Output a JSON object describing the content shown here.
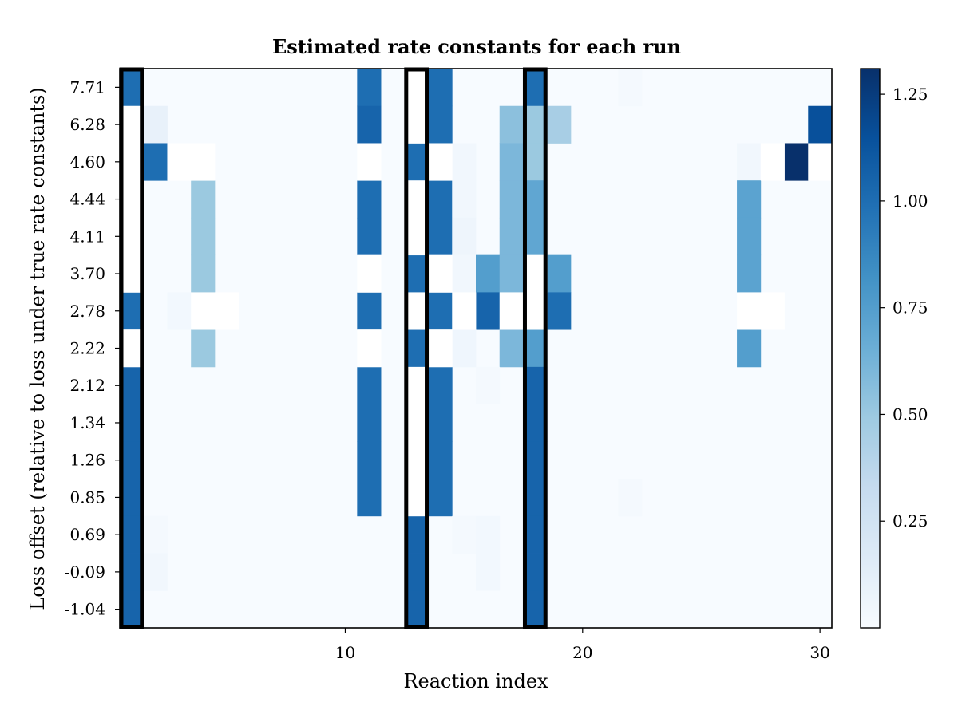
{
  "chart_data": {
    "type": "heatmap",
    "title": "Estimated rate constants for each run",
    "xlabel": "Reaction index",
    "ylabel": "Loss offset (relative to loss under true rate constants)",
    "x_range": [
      1,
      30
    ],
    "x_ticks": [
      10,
      20,
      30
    ],
    "row_labels": [
      "7.71",
      "6.28",
      "4.60",
      "4.44",
      "4.11",
      "3.70",
      "2.78",
      "2.22",
      "2.12",
      "1.34",
      "1.26",
      "0.85",
      "0.69",
      "-0.09",
      "-1.04"
    ],
    "colorbar": {
      "min": 0.0,
      "max": 1.31,
      "ticks": [
        0.25,
        0.5,
        0.75,
        1.0,
        1.25
      ],
      "tick_labels": [
        "0.25",
        "0.50",
        "0.75",
        "1.00",
        "1.25"
      ],
      "colormap": "Blues"
    },
    "highlighted_columns": [
      1,
      13,
      18
    ],
    "default_value": 0.0,
    "cells": [
      {
        "row": 0,
        "col": 1,
        "value": 1.0
      },
      {
        "row": 0,
        "col": 11,
        "value": 1.0
      },
      {
        "row": 0,
        "col": 14,
        "value": 1.0
      },
      {
        "row": 0,
        "col": 18,
        "value": 1.0
      },
      {
        "row": 0,
        "col": 22,
        "value": 0.02
      },
      {
        "row": 1,
        "col": 2,
        "value": 0.1
      },
      {
        "row": 1,
        "col": 11,
        "value": 1.05
      },
      {
        "row": 1,
        "col": 14,
        "value": 1.0
      },
      {
        "row": 1,
        "col": 17,
        "value": 0.55
      },
      {
        "row": 1,
        "col": 18,
        "value": 0.5
      },
      {
        "row": 1,
        "col": 19,
        "value": 0.45
      },
      {
        "row": 1,
        "col": 30,
        "value": 1.15
      },
      {
        "row": 2,
        "col": 2,
        "value": 1.0
      },
      {
        "row": 2,
        "col": 13,
        "value": 1.0
      },
      {
        "row": 2,
        "col": 15,
        "value": 0.04
      },
      {
        "row": 2,
        "col": 17,
        "value": 0.6
      },
      {
        "row": 2,
        "col": 18,
        "value": 0.5
      },
      {
        "row": 2,
        "col": 27,
        "value": 0.04
      },
      {
        "row": 2,
        "col": 29,
        "value": 1.31
      },
      {
        "row": 3,
        "col": 4,
        "value": 0.5
      },
      {
        "row": 3,
        "col": 11,
        "value": 1.0
      },
      {
        "row": 3,
        "col": 14,
        "value": 1.0
      },
      {
        "row": 3,
        "col": 15,
        "value": 0.04
      },
      {
        "row": 3,
        "col": 17,
        "value": 0.6
      },
      {
        "row": 3,
        "col": 18,
        "value": 0.7
      },
      {
        "row": 3,
        "col": 27,
        "value": 0.72
      },
      {
        "row": 4,
        "col": 4,
        "value": 0.5
      },
      {
        "row": 4,
        "col": 11,
        "value": 1.0
      },
      {
        "row": 4,
        "col": 14,
        "value": 1.0
      },
      {
        "row": 4,
        "col": 15,
        "value": 0.06
      },
      {
        "row": 4,
        "col": 17,
        "value": 0.6
      },
      {
        "row": 4,
        "col": 18,
        "value": 0.7
      },
      {
        "row": 4,
        "col": 27,
        "value": 0.72
      },
      {
        "row": 5,
        "col": 4,
        "value": 0.5
      },
      {
        "row": 5,
        "col": 13,
        "value": 1.0
      },
      {
        "row": 5,
        "col": 15,
        "value": 0.04
      },
      {
        "row": 5,
        "col": 16,
        "value": 0.75
      },
      {
        "row": 5,
        "col": 17,
        "value": 0.6
      },
      {
        "row": 5,
        "col": 19,
        "value": 0.75
      },
      {
        "row": 5,
        "col": 27,
        "value": 0.72
      },
      {
        "row": 6,
        "col": 1,
        "value": 1.0
      },
      {
        "row": 6,
        "col": 3,
        "value": 0.03
      },
      {
        "row": 6,
        "col": 11,
        "value": 1.0
      },
      {
        "row": 6,
        "col": 14,
        "value": 1.0
      },
      {
        "row": 6,
        "col": 16,
        "value": 1.05
      },
      {
        "row": 6,
        "col": 19,
        "value": 1.0
      },
      {
        "row": 7,
        "col": 4,
        "value": 0.5
      },
      {
        "row": 7,
        "col": 13,
        "value": 1.0
      },
      {
        "row": 7,
        "col": 15,
        "value": 0.05
      },
      {
        "row": 7,
        "col": 17,
        "value": 0.6
      },
      {
        "row": 7,
        "col": 18,
        "value": 0.75
      },
      {
        "row": 7,
        "col": 27,
        "value": 0.75
      },
      {
        "row": 8,
        "col": 1,
        "value": 1.05
      },
      {
        "row": 8,
        "col": 11,
        "value": 1.0
      },
      {
        "row": 8,
        "col": 14,
        "value": 1.0
      },
      {
        "row": 8,
        "col": 16,
        "value": 0.02
      },
      {
        "row": 8,
        "col": 18,
        "value": 1.05
      },
      {
        "row": 9,
        "col": 1,
        "value": 1.05
      },
      {
        "row": 9,
        "col": 11,
        "value": 1.0
      },
      {
        "row": 9,
        "col": 14,
        "value": 1.0
      },
      {
        "row": 9,
        "col": 18,
        "value": 1.05
      },
      {
        "row": 10,
        "col": 1,
        "value": 1.05
      },
      {
        "row": 10,
        "col": 11,
        "value": 1.0
      },
      {
        "row": 10,
        "col": 14,
        "value": 1.0
      },
      {
        "row": 10,
        "col": 18,
        "value": 1.05
      },
      {
        "row": 11,
        "col": 1,
        "value": 1.05
      },
      {
        "row": 11,
        "col": 11,
        "value": 1.0
      },
      {
        "row": 11,
        "col": 14,
        "value": 1.0
      },
      {
        "row": 11,
        "col": 18,
        "value": 1.05
      },
      {
        "row": 11,
        "col": 22,
        "value": 0.02
      },
      {
        "row": 12,
        "col": 1,
        "value": 1.05
      },
      {
        "row": 12,
        "col": 2,
        "value": 0.02
      },
      {
        "row": 12,
        "col": 13,
        "value": 1.05
      },
      {
        "row": 12,
        "col": 15,
        "value": 0.02
      },
      {
        "row": 12,
        "col": 16,
        "value": 0.03
      },
      {
        "row": 12,
        "col": 18,
        "value": 1.05
      },
      {
        "row": 13,
        "col": 1,
        "value": 1.05
      },
      {
        "row": 13,
        "col": 2,
        "value": 0.04
      },
      {
        "row": 13,
        "col": 13,
        "value": 1.05
      },
      {
        "row": 13,
        "col": 16,
        "value": 0.03
      },
      {
        "row": 13,
        "col": 18,
        "value": 1.05
      },
      {
        "row": 14,
        "col": 1,
        "value": 1.05
      },
      {
        "row": 14,
        "col": 13,
        "value": 1.05
      },
      {
        "row": 14,
        "col": 18,
        "value": 1.05
      }
    ],
    "white_cells": [
      {
        "row": 1,
        "col": 1
      },
      {
        "row": 2,
        "col": 1
      },
      {
        "row": 3,
        "col": 1
      },
      {
        "row": 4,
        "col": 1
      },
      {
        "row": 5,
        "col": 1
      },
      {
        "row": 7,
        "col": 1
      },
      {
        "row": 0,
        "col": 13
      },
      {
        "row": 1,
        "col": 13
      },
      {
        "row": 3,
        "col": 13
      },
      {
        "row": 4,
        "col": 13
      },
      {
        "row": 6,
        "col": 13
      },
      {
        "row": 8,
        "col": 13
      },
      {
        "row": 9,
        "col": 13
      },
      {
        "row": 10,
        "col": 13
      },
      {
        "row": 11,
        "col": 13
      },
      {
        "row": 2,
        "col": 14
      },
      {
        "row": 5,
        "col": 14
      },
      {
        "row": 7,
        "col": 14
      },
      {
        "row": 5,
        "col": 18
      },
      {
        "row": 6,
        "col": 18
      },
      {
        "row": 6,
        "col": 17
      },
      {
        "row": 6,
        "col": 15
      },
      {
        "row": 2,
        "col": 11
      },
      {
        "row": 5,
        "col": 11
      },
      {
        "row": 7,
        "col": 11
      },
      {
        "row": 2,
        "col": 3
      },
      {
        "row": 2,
        "col": 4
      },
      {
        "row": 6,
        "col": 4
      },
      {
        "row": 6,
        "col": 5
      },
      {
        "row": 2,
        "col": 28
      },
      {
        "row": 2,
        "col": 30
      },
      {
        "row": 6,
        "col": 27
      },
      {
        "row": 6,
        "col": 28
      }
    ]
  }
}
